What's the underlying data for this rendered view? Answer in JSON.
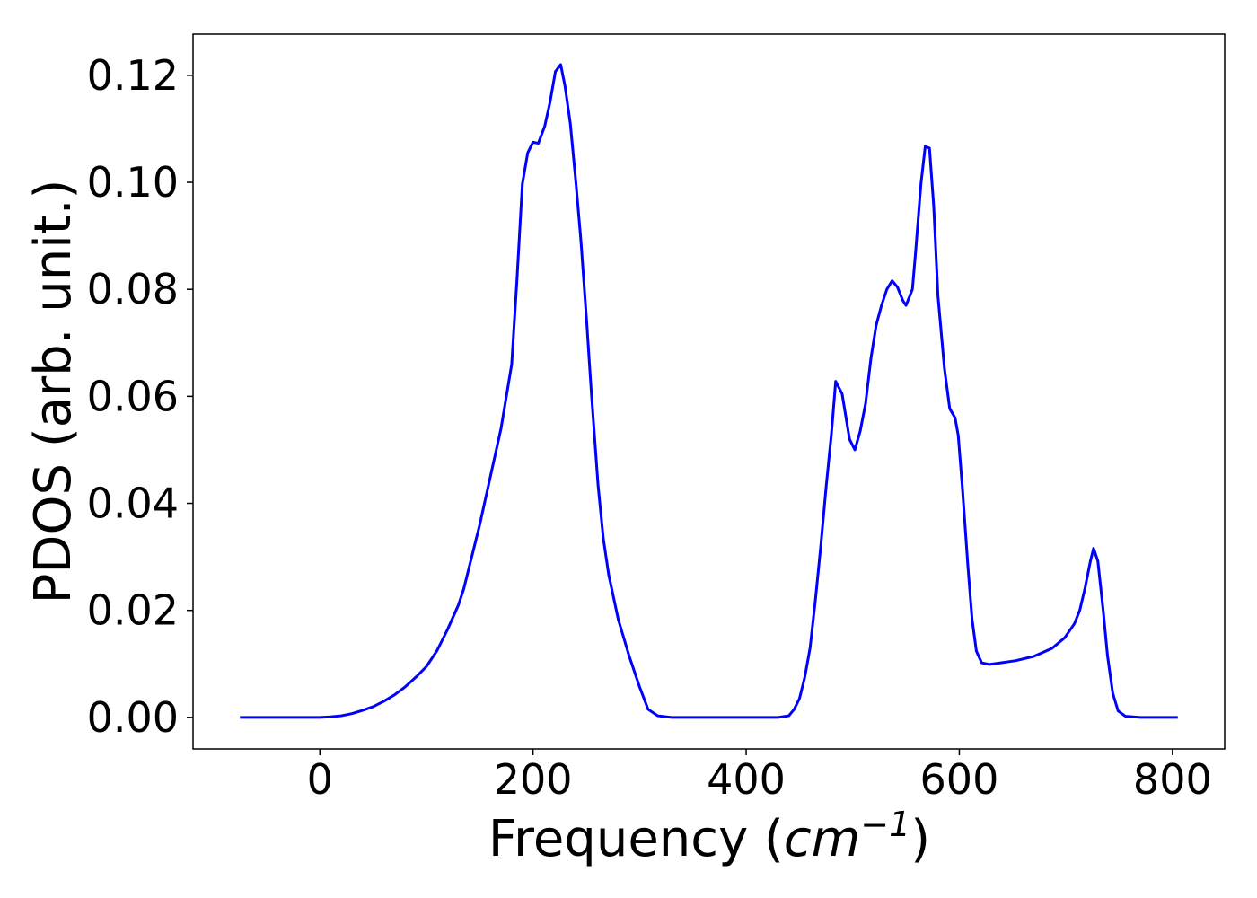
{
  "chart_data": {
    "type": "line",
    "x_label": {
      "text": "Frequency (",
      "unit": "cm",
      "exponent": "−1",
      "close": ")"
    },
    "y_label": "PDOS (arb. unit.)",
    "x": [
      -75,
      -50,
      -25,
      0,
      10,
      20,
      30,
      40,
      50,
      60,
      70,
      80,
      90,
      100,
      110,
      120,
      130,
      135,
      140,
      150,
      160,
      170,
      175,
      180,
      185,
      190,
      195,
      200,
      205,
      211,
      216,
      221,
      226,
      230,
      235,
      240,
      245,
      250,
      255,
      261,
      266,
      271,
      280,
      290,
      300,
      308,
      317,
      330,
      360,
      400,
      430,
      440,
      445,
      450,
      455,
      460,
      465,
      470,
      475,
      480,
      484,
      490,
      497,
      502,
      507,
      512,
      517,
      522,
      527,
      532,
      537,
      542,
      547,
      550,
      556,
      559,
      564,
      568,
      572,
      576,
      580,
      586,
      591,
      596,
      599,
      603,
      608,
      612,
      616,
      621,
      628,
      636,
      653,
      670,
      687,
      699,
      708,
      713,
      718,
      723,
      726,
      730,
      735,
      739,
      744,
      749,
      756,
      770,
      805
    ],
    "series": [
      {
        "name": "PDOS",
        "color": "#0000ff",
        "values": [
          0,
          0,
          0,
          0,
          0.0001,
          0.0003,
          0.0007,
          0.0013,
          0.002,
          0.003,
          0.0042,
          0.0057,
          0.0075,
          0.0095,
          0.0125,
          0.0165,
          0.021,
          0.024,
          0.028,
          0.036,
          0.045,
          0.054,
          0.06,
          0.066,
          0.082,
          0.0997,
          0.1055,
          0.1075,
          0.1073,
          0.1105,
          0.115,
          0.1207,
          0.122,
          0.118,
          0.111,
          0.1005,
          0.089,
          0.075,
          0.06,
          0.0435,
          0.0334,
          0.0267,
          0.0183,
          0.0116,
          0.0057,
          0.0015,
          0.0003,
          0,
          0,
          0,
          0,
          0.0003,
          0.0015,
          0.0035,
          0.0075,
          0.013,
          0.022,
          0.032,
          0.043,
          0.053,
          0.0628,
          0.0605,
          0.052,
          0.05,
          0.0535,
          0.0586,
          0.067,
          0.0733,
          0.077,
          0.08,
          0.0816,
          0.0804,
          0.0779,
          0.077,
          0.08,
          0.087,
          0.0997,
          0.1067,
          0.1064,
          0.0955,
          0.0787,
          0.0653,
          0.0577,
          0.056,
          0.0527,
          0.0426,
          0.0284,
          0.0183,
          0.0124,
          0.0102,
          0.0099,
          0.0101,
          0.0106,
          0.0114,
          0.0129,
          0.0149,
          0.0175,
          0.02,
          0.0242,
          0.0292,
          0.0316,
          0.0292,
          0.02,
          0.0116,
          0.0045,
          0.0012,
          0.0002,
          0,
          0
        ]
      }
    ],
    "xlim": [
      -119,
      849
    ],
    "xticks": [
      0,
      200,
      400,
      600,
      800
    ],
    "ylim": [
      -0.0059,
      0.1277
    ],
    "yticks": [
      {
        "value": 0,
        "label": "0.00"
      },
      {
        "value": 0.02,
        "label": "0.02"
      },
      {
        "value": 0.04,
        "label": "0.04"
      },
      {
        "value": 0.06,
        "label": "0.06"
      },
      {
        "value": 0.08,
        "label": "0.08"
      },
      {
        "value": 0.1,
        "label": "0.10"
      },
      {
        "value": 0.12,
        "label": "0.12"
      }
    ],
    "grid": false
  }
}
